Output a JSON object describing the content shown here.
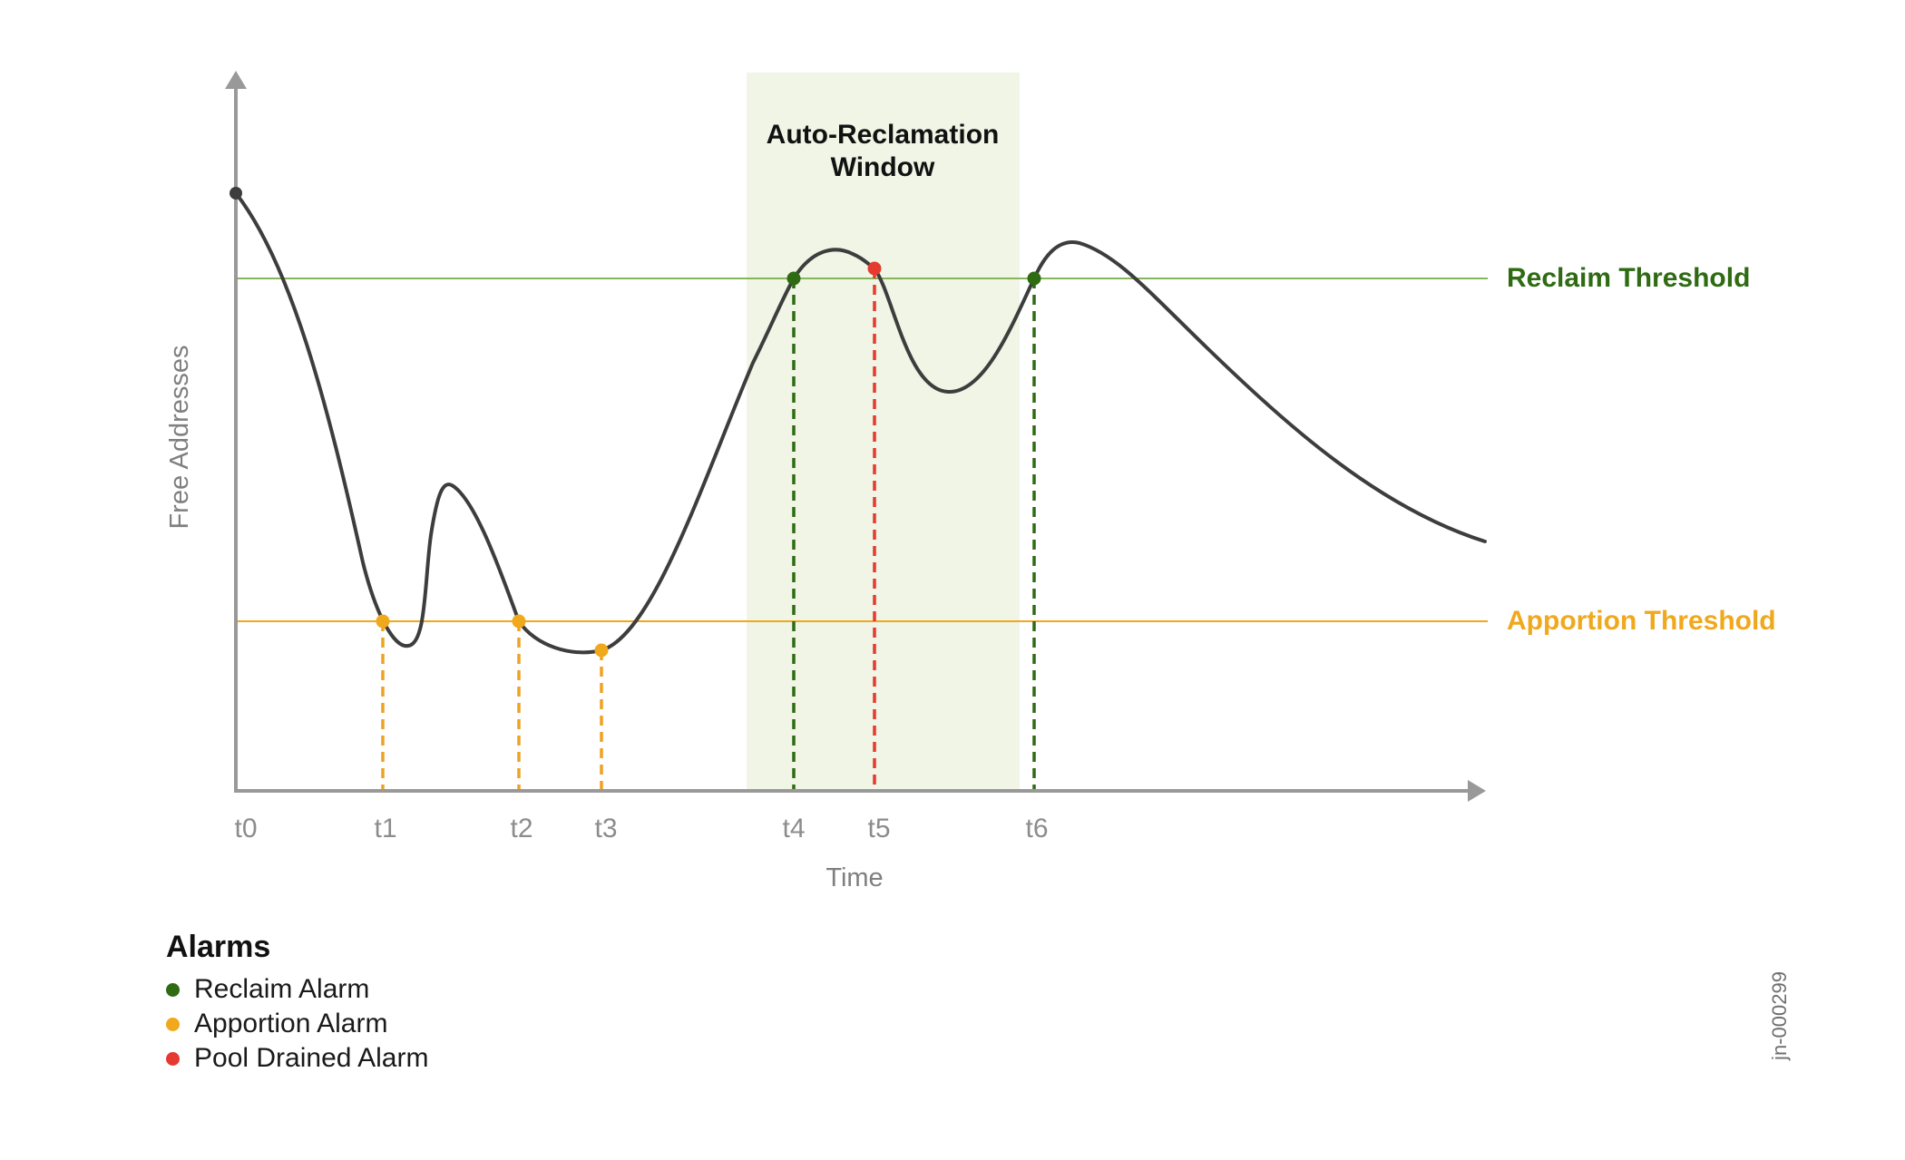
{
  "window_label_line1": "Auto-Reclamation",
  "window_label_line2": "Window",
  "y_axis_label": "Free Addresses",
  "x_axis_label": "Time",
  "thresholds": {
    "reclaim": {
      "label": "Reclaim Threshold",
      "color": "#2e6b12",
      "line_color": "#86b55a"
    },
    "apportion": {
      "label": "Apportion Threshold",
      "color": "#f0a81c",
      "line_color": "#f0a81c"
    }
  },
  "time_ticks": [
    "t0",
    "t1",
    "t2",
    "t3",
    "t4",
    "t5",
    "t6"
  ],
  "alarm_markers": [
    {
      "tick": "t1",
      "type": "apportion"
    },
    {
      "tick": "t2",
      "type": "apportion"
    },
    {
      "tick": "t3",
      "type": "apportion"
    },
    {
      "tick": "t4",
      "type": "reclaim"
    },
    {
      "tick": "t5",
      "type": "pool-drained"
    },
    {
      "tick": "t6",
      "type": "reclaim"
    }
  ],
  "legend": {
    "title": "Alarms",
    "items": [
      {
        "label": "Reclaim Alarm",
        "color": "#2e6b12"
      },
      {
        "label": "Apportion Alarm",
        "color": "#f0a81c"
      },
      {
        "label": "Pool Drained Alarm",
        "color": "#e53a2f"
      }
    ]
  },
  "colors": {
    "curve": "#3d3d3d",
    "axis": "#999999",
    "window_fill": "#f0f5e6",
    "reclaim_drop": "#2e6b12",
    "apportion_drop": "#eea224",
    "pool_drained": "#e53a2f"
  },
  "figure_id": "jn-000299"
}
